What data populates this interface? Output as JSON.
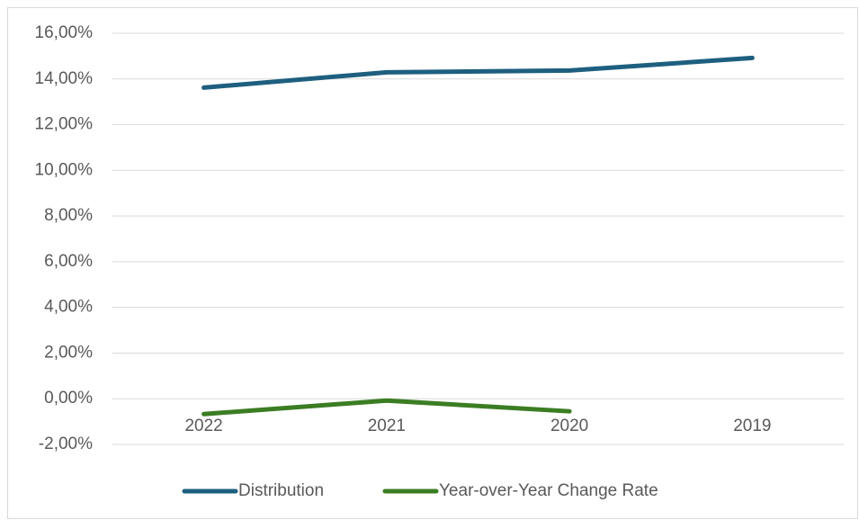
{
  "chart_data": {
    "type": "line",
    "categories": [
      "2022",
      "2021",
      "2020",
      "2019"
    ],
    "series": [
      {
        "name": "Distribution",
        "color": "#1e5f7f",
        "values": [
          13.62,
          14.29,
          14.37,
          14.92
        ]
      },
      {
        "name": "Year-over-Year Change Rate",
        "color": "#3b7d23",
        "values": [
          -0.67,
          -0.08,
          -0.55,
          null
        ]
      }
    ],
    "ylim": [
      -2,
      16
    ],
    "yticks": [
      {
        "value": -2,
        "label": "-2,00%"
      },
      {
        "value": 0,
        "label": "0,00%"
      },
      {
        "value": 2,
        "label": "2,00%"
      },
      {
        "value": 4,
        "label": "4,00%"
      },
      {
        "value": 6,
        "label": "6,00%"
      },
      {
        "value": 8,
        "label": "8,00%"
      },
      {
        "value": 10,
        "label": "10,00%"
      },
      {
        "value": 12,
        "label": "12,00%"
      },
      {
        "value": 14,
        "label": "14,00%"
      },
      {
        "value": 16,
        "label": "16,00%"
      }
    ],
    "grid": true,
    "legend": "bottom"
  }
}
